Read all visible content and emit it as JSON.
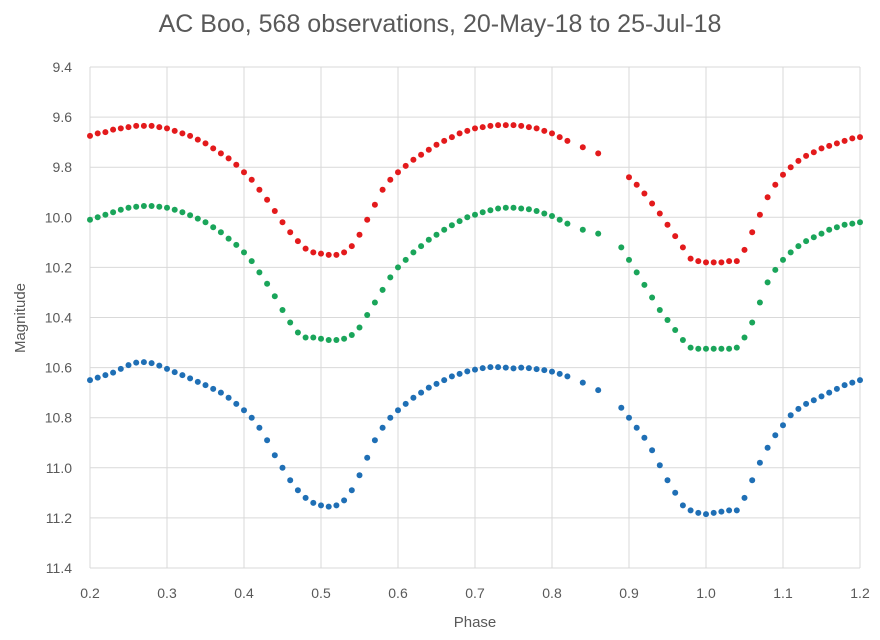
{
  "chart_data": {
    "type": "scatter",
    "title": "AC Boo, 568 observations, 20-May-18 to 25-Jul-18",
    "xlabel": "Phase",
    "ylabel": "Magnitude",
    "xlim": [
      0.2,
      1.2
    ],
    "ylim": [
      9.4,
      11.4
    ],
    "y_inverted": true,
    "grid": true,
    "x_ticks": [
      "0.2",
      "0.3",
      "0.4",
      "0.5",
      "0.6",
      "0.7",
      "0.8",
      "0.9",
      "1.0",
      "1.1",
      "1.2"
    ],
    "y_ticks": [
      "9.4",
      "9.6",
      "9.8",
      "10.0",
      "10.2",
      "10.4",
      "10.6",
      "10.8",
      "11.0",
      "11.2",
      "11.4"
    ],
    "series": [
      {
        "name": "red",
        "color": "#e31a1c",
        "points": [
          [
            0.2,
            9.675
          ],
          [
            0.21,
            9.665
          ],
          [
            0.22,
            9.66
          ],
          [
            0.23,
            9.65
          ],
          [
            0.24,
            9.645
          ],
          [
            0.25,
            9.64
          ],
          [
            0.26,
            9.635
          ],
          [
            0.27,
            9.635
          ],
          [
            0.28,
            9.635
          ],
          [
            0.29,
            9.64
          ],
          [
            0.3,
            9.645
          ],
          [
            0.31,
            9.655
          ],
          [
            0.32,
            9.665
          ],
          [
            0.33,
            9.675
          ],
          [
            0.34,
            9.69
          ],
          [
            0.35,
            9.705
          ],
          [
            0.36,
            9.725
          ],
          [
            0.37,
            9.745
          ],
          [
            0.38,
            9.765
          ],
          [
            0.39,
            9.79
          ],
          [
            0.4,
            9.82
          ],
          [
            0.41,
            9.85
          ],
          [
            0.42,
            9.89
          ],
          [
            0.43,
            9.93
          ],
          [
            0.44,
            9.975
          ],
          [
            0.45,
            10.02
          ],
          [
            0.46,
            10.06
          ],
          [
            0.47,
            10.095
          ],
          [
            0.48,
            10.125
          ],
          [
            0.49,
            10.14
          ],
          [
            0.5,
            10.145
          ],
          [
            0.51,
            10.15
          ],
          [
            0.52,
            10.15
          ],
          [
            0.53,
            10.14
          ],
          [
            0.54,
            10.115
          ],
          [
            0.55,
            10.07
          ],
          [
            0.56,
            10.01
          ],
          [
            0.57,
            9.95
          ],
          [
            0.58,
            9.89
          ],
          [
            0.59,
            9.85
          ],
          [
            0.6,
            9.82
          ],
          [
            0.61,
            9.795
          ],
          [
            0.62,
            9.77
          ],
          [
            0.63,
            9.75
          ],
          [
            0.64,
            9.73
          ],
          [
            0.65,
            9.71
          ],
          [
            0.66,
            9.695
          ],
          [
            0.67,
            9.68
          ],
          [
            0.68,
            9.665
          ],
          [
            0.69,
            9.655
          ],
          [
            0.7,
            9.645
          ],
          [
            0.71,
            9.64
          ],
          [
            0.72,
            9.635
          ],
          [
            0.73,
            9.632
          ],
          [
            0.74,
            9.632
          ],
          [
            0.75,
            9.632
          ],
          [
            0.76,
            9.635
          ],
          [
            0.77,
            9.64
          ],
          [
            0.78,
            9.645
          ],
          [
            0.79,
            9.655
          ],
          [
            0.8,
            9.665
          ],
          [
            0.81,
            9.68
          ],
          [
            0.82,
            9.695
          ],
          [
            0.84,
            9.72
          ],
          [
            0.86,
            9.745
          ],
          [
            0.9,
            9.84
          ],
          [
            0.91,
            9.87
          ],
          [
            0.92,
            9.905
          ],
          [
            0.93,
            9.945
          ],
          [
            0.94,
            9.985
          ],
          [
            0.95,
            10.03
          ],
          [
            0.96,
            10.075
          ],
          [
            0.97,
            10.12
          ],
          [
            0.98,
            10.165
          ],
          [
            0.99,
            10.175
          ],
          [
            1.0,
            10.18
          ],
          [
            1.01,
            10.18
          ],
          [
            1.02,
            10.18
          ],
          [
            1.03,
            10.175
          ],
          [
            1.04,
            10.175
          ],
          [
            1.05,
            10.13
          ],
          [
            1.06,
            10.06
          ],
          [
            1.07,
            9.99
          ],
          [
            1.08,
            9.92
          ],
          [
            1.09,
            9.87
          ],
          [
            1.1,
            9.83
          ],
          [
            1.11,
            9.8
          ],
          [
            1.12,
            9.775
          ],
          [
            1.13,
            9.755
          ],
          [
            1.14,
            9.74
          ],
          [
            1.15,
            9.725
          ],
          [
            1.16,
            9.715
          ],
          [
            1.17,
            9.705
          ],
          [
            1.18,
            9.695
          ],
          [
            1.19,
            9.685
          ],
          [
            1.2,
            9.68
          ]
        ]
      },
      {
        "name": "green",
        "color": "#1aa55a",
        "points": [
          [
            0.2,
            10.01
          ],
          [
            0.21,
            10.0
          ],
          [
            0.22,
            9.99
          ],
          [
            0.23,
            9.98
          ],
          [
            0.24,
            9.97
          ],
          [
            0.25,
            9.962
          ],
          [
            0.26,
            9.958
          ],
          [
            0.27,
            9.955
          ],
          [
            0.28,
            9.955
          ],
          [
            0.29,
            9.958
          ],
          [
            0.3,
            9.962
          ],
          [
            0.31,
            9.97
          ],
          [
            0.32,
            9.98
          ],
          [
            0.33,
            9.992
          ],
          [
            0.34,
            10.005
          ],
          [
            0.35,
            10.02
          ],
          [
            0.36,
            10.04
          ],
          [
            0.37,
            10.06
          ],
          [
            0.38,
            10.085
          ],
          [
            0.39,
            10.11
          ],
          [
            0.4,
            10.14
          ],
          [
            0.41,
            10.175
          ],
          [
            0.42,
            10.22
          ],
          [
            0.43,
            10.265
          ],
          [
            0.44,
            10.315
          ],
          [
            0.45,
            10.37
          ],
          [
            0.46,
            10.42
          ],
          [
            0.47,
            10.46
          ],
          [
            0.48,
            10.48
          ],
          [
            0.49,
            10.48
          ],
          [
            0.5,
            10.485
          ],
          [
            0.51,
            10.49
          ],
          [
            0.52,
            10.49
          ],
          [
            0.53,
            10.485
          ],
          [
            0.54,
            10.47
          ],
          [
            0.55,
            10.44
          ],
          [
            0.56,
            10.39
          ],
          [
            0.57,
            10.34
          ],
          [
            0.58,
            10.29
          ],
          [
            0.59,
            10.24
          ],
          [
            0.6,
            10.2
          ],
          [
            0.61,
            10.17
          ],
          [
            0.62,
            10.14
          ],
          [
            0.63,
            10.115
          ],
          [
            0.64,
            10.09
          ],
          [
            0.65,
            10.07
          ],
          [
            0.66,
            10.05
          ],
          [
            0.67,
            10.032
          ],
          [
            0.68,
            10.015
          ],
          [
            0.69,
            10.0
          ],
          [
            0.7,
            9.99
          ],
          [
            0.71,
            9.98
          ],
          [
            0.72,
            9.972
          ],
          [
            0.73,
            9.965
          ],
          [
            0.74,
            9.962
          ],
          [
            0.75,
            9.962
          ],
          [
            0.76,
            9.965
          ],
          [
            0.77,
            9.968
          ],
          [
            0.78,
            9.975
          ],
          [
            0.79,
            9.985
          ],
          [
            0.8,
            9.995
          ],
          [
            0.81,
            10.01
          ],
          [
            0.82,
            10.025
          ],
          [
            0.84,
            10.05
          ],
          [
            0.86,
            10.065
          ],
          [
            0.89,
            10.12
          ],
          [
            0.9,
            10.17
          ],
          [
            0.91,
            10.22
          ],
          [
            0.92,
            10.27
          ],
          [
            0.93,
            10.32
          ],
          [
            0.94,
            10.37
          ],
          [
            0.95,
            10.41
          ],
          [
            0.96,
            10.45
          ],
          [
            0.97,
            10.49
          ],
          [
            0.98,
            10.52
          ],
          [
            0.99,
            10.525
          ],
          [
            1.0,
            10.525
          ],
          [
            1.01,
            10.525
          ],
          [
            1.02,
            10.525
          ],
          [
            1.03,
            10.525
          ],
          [
            1.04,
            10.52
          ],
          [
            1.05,
            10.48
          ],
          [
            1.06,
            10.42
          ],
          [
            1.07,
            10.34
          ],
          [
            1.08,
            10.26
          ],
          [
            1.09,
            10.21
          ],
          [
            1.1,
            10.17
          ],
          [
            1.11,
            10.14
          ],
          [
            1.12,
            10.115
          ],
          [
            1.13,
            10.095
          ],
          [
            1.14,
            10.08
          ],
          [
            1.15,
            10.065
          ],
          [
            1.16,
            10.05
          ],
          [
            1.17,
            10.04
          ],
          [
            1.18,
            10.03
          ],
          [
            1.19,
            10.025
          ],
          [
            1.2,
            10.02
          ]
        ]
      },
      {
        "name": "blue",
        "color": "#1f6fb5",
        "points": [
          [
            0.2,
            10.65
          ],
          [
            0.21,
            10.64
          ],
          [
            0.22,
            10.63
          ],
          [
            0.23,
            10.62
          ],
          [
            0.24,
            10.605
          ],
          [
            0.25,
            10.59
          ],
          [
            0.26,
            10.58
          ],
          [
            0.27,
            10.578
          ],
          [
            0.28,
            10.582
          ],
          [
            0.29,
            10.592
          ],
          [
            0.3,
            10.605
          ],
          [
            0.31,
            10.618
          ],
          [
            0.32,
            10.63
          ],
          [
            0.33,
            10.643
          ],
          [
            0.34,
            10.657
          ],
          [
            0.35,
            10.67
          ],
          [
            0.36,
            10.685
          ],
          [
            0.37,
            10.7
          ],
          [
            0.38,
            10.72
          ],
          [
            0.39,
            10.745
          ],
          [
            0.4,
            10.77
          ],
          [
            0.41,
            10.8
          ],
          [
            0.42,
            10.84
          ],
          [
            0.43,
            10.89
          ],
          [
            0.44,
            10.95
          ],
          [
            0.45,
            11.0
          ],
          [
            0.46,
            11.05
          ],
          [
            0.47,
            11.09
          ],
          [
            0.48,
            11.12
          ],
          [
            0.49,
            11.14
          ],
          [
            0.5,
            11.15
          ],
          [
            0.51,
            11.155
          ],
          [
            0.52,
            11.15
          ],
          [
            0.53,
            11.13
          ],
          [
            0.54,
            11.09
          ],
          [
            0.55,
            11.03
          ],
          [
            0.56,
            10.96
          ],
          [
            0.57,
            10.89
          ],
          [
            0.58,
            10.84
          ],
          [
            0.59,
            10.8
          ],
          [
            0.6,
            10.77
          ],
          [
            0.61,
            10.745
          ],
          [
            0.62,
            10.72
          ],
          [
            0.63,
            10.7
          ],
          [
            0.64,
            10.68
          ],
          [
            0.65,
            10.665
          ],
          [
            0.66,
            10.65
          ],
          [
            0.67,
            10.635
          ],
          [
            0.68,
            10.625
          ],
          [
            0.69,
            10.615
          ],
          [
            0.7,
            10.608
          ],
          [
            0.71,
            10.602
          ],
          [
            0.72,
            10.598
          ],
          [
            0.73,
            10.598
          ],
          [
            0.74,
            10.6
          ],
          [
            0.75,
            10.603
          ],
          [
            0.76,
            10.6
          ],
          [
            0.77,
            10.602
          ],
          [
            0.78,
            10.606
          ],
          [
            0.79,
            10.61
          ],
          [
            0.8,
            10.616
          ],
          [
            0.81,
            10.625
          ],
          [
            0.82,
            10.635
          ],
          [
            0.84,
            10.66
          ],
          [
            0.86,
            10.69
          ],
          [
            0.89,
            10.76
          ],
          [
            0.9,
            10.8
          ],
          [
            0.91,
            10.84
          ],
          [
            0.92,
            10.88
          ],
          [
            0.93,
            10.93
          ],
          [
            0.94,
            10.99
          ],
          [
            0.95,
            11.05
          ],
          [
            0.96,
            11.1
          ],
          [
            0.97,
            11.15
          ],
          [
            0.98,
            11.17
          ],
          [
            0.99,
            11.18
          ],
          [
            1.0,
            11.185
          ],
          [
            1.01,
            11.18
          ],
          [
            1.02,
            11.175
          ],
          [
            1.03,
            11.17
          ],
          [
            1.04,
            11.17
          ],
          [
            1.05,
            11.12
          ],
          [
            1.06,
            11.05
          ],
          [
            1.07,
            10.98
          ],
          [
            1.08,
            10.92
          ],
          [
            1.09,
            10.87
          ],
          [
            1.1,
            10.83
          ],
          [
            1.11,
            10.79
          ],
          [
            1.12,
            10.765
          ],
          [
            1.13,
            10.745
          ],
          [
            1.14,
            10.73
          ],
          [
            1.15,
            10.715
          ],
          [
            1.16,
            10.7
          ],
          [
            1.17,
            10.685
          ],
          [
            1.18,
            10.67
          ],
          [
            1.19,
            10.66
          ],
          [
            1.2,
            10.65
          ]
        ]
      }
    ]
  }
}
